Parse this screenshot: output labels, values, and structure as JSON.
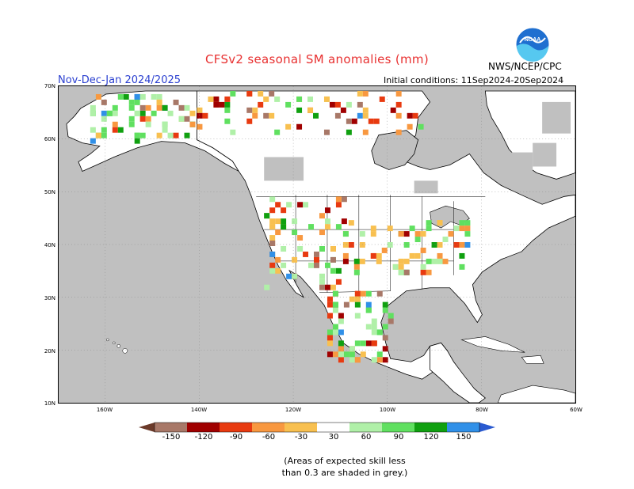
{
  "title": "CFSv2 seasonal SM anomalies (mm)",
  "period": "Nov-Dec-Jan 2024/2025",
  "initial_conditions": "Initial conditions: 11Sep2024-20Sep2024",
  "agency": "NWS/NCEP/CPC",
  "logo_text": "NOAA",
  "map": {
    "lat_labels": [
      "70N",
      "60N",
      "50N",
      "40N",
      "30N",
      "20N",
      "10N"
    ],
    "lon_labels": [
      "160W",
      "140W",
      "120W",
      "100W",
      "80W",
      "60W"
    ],
    "land_color": "#ffffff",
    "no_skill_color": "#c0c0c0",
    "ocean_color": "#c0c0c0"
  },
  "legend": {
    "labels": [
      "-150",
      "-120",
      "-90",
      "-60",
      "-30",
      "30",
      "60",
      "90",
      "120",
      "150"
    ],
    "colors": [
      "#6b3a2a",
      "#a87868",
      "#a00000",
      "#e83a10",
      "#f89840",
      "#f8c050",
      "#ffffff",
      "#b0f0a8",
      "#60e060",
      "#10a010",
      "#3090e8",
      "#2a5ad0"
    ]
  },
  "note_line1": "(Areas of expected skill less",
  "note_line2": "than 0.3 are shaded in grey.)"
}
